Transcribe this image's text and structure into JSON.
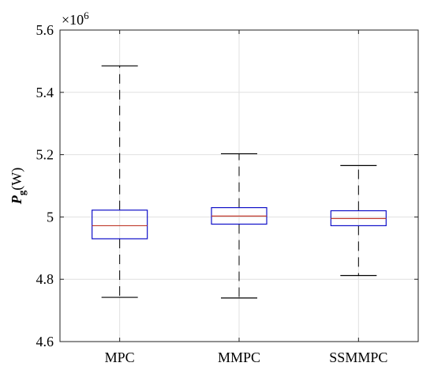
{
  "chart_data": {
    "type": "box",
    "ylabel": "P",
    "ylabel_subscript": "g",
    "ylabel_unit": "(W)",
    "y_multiplier": "×10",
    "y_multiplier_exp": "6",
    "ylim": [
      4.6,
      5.6
    ],
    "yticks": [
      4.6,
      4.8,
      5.0,
      5.2,
      5.4,
      5.6
    ],
    "ytick_labels": [
      "4.6",
      "4.8",
      "5",
      "5.2",
      "5.4",
      "5.6"
    ],
    "categories": [
      "MPC",
      "MMPC",
      "SSMMPC"
    ],
    "boxes": [
      {
        "whisker_low": 4.742,
        "q1": 4.93,
        "median": 4.972,
        "q3": 5.022,
        "whisker_high": 5.485
      },
      {
        "whisker_low": 4.74,
        "q1": 4.977,
        "median": 5.003,
        "q3": 5.03,
        "whisker_high": 5.203
      },
      {
        "whisker_low": 4.812,
        "q1": 4.972,
        "median": 4.995,
        "q3": 5.02,
        "whisker_high": 5.165
      }
    ],
    "grid": true,
    "colors": {
      "box": "#1010c8",
      "median": "#c0392b",
      "whisker": "#000000",
      "grid": "#e0e0e0",
      "axis": "#222222"
    }
  }
}
